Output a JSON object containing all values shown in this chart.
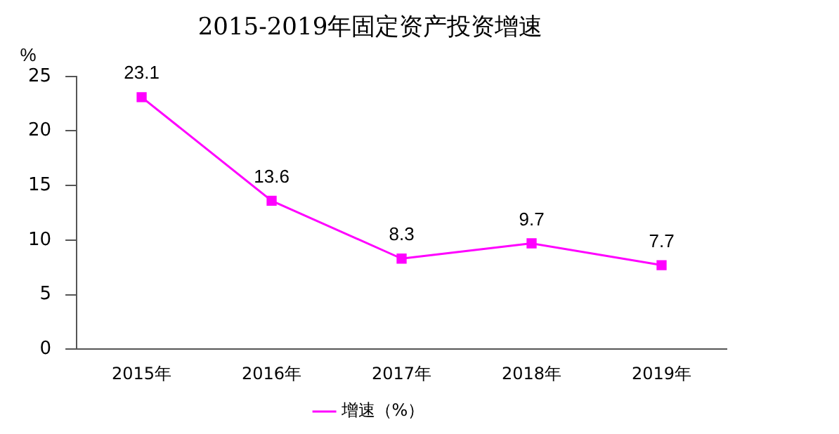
{
  "chart_data": {
    "type": "line",
    "title": "2015-2019年固定资产投资增速",
    "ylabel": "%",
    "categories": [
      "2015年",
      "2016年",
      "2017年",
      "2018年",
      "2019年"
    ],
    "series": [
      {
        "name": "增速（%）",
        "color": "#ff00ff",
        "values": [
          23.1,
          13.6,
          8.3,
          9.7,
          7.7
        ]
      }
    ],
    "ylim": [
      0,
      25
    ],
    "yticks": [
      0,
      5,
      10,
      15,
      20,
      25
    ],
    "grid": false,
    "legend": "bottom",
    "marker": "square",
    "line_style": "solid",
    "data_labels": true
  }
}
